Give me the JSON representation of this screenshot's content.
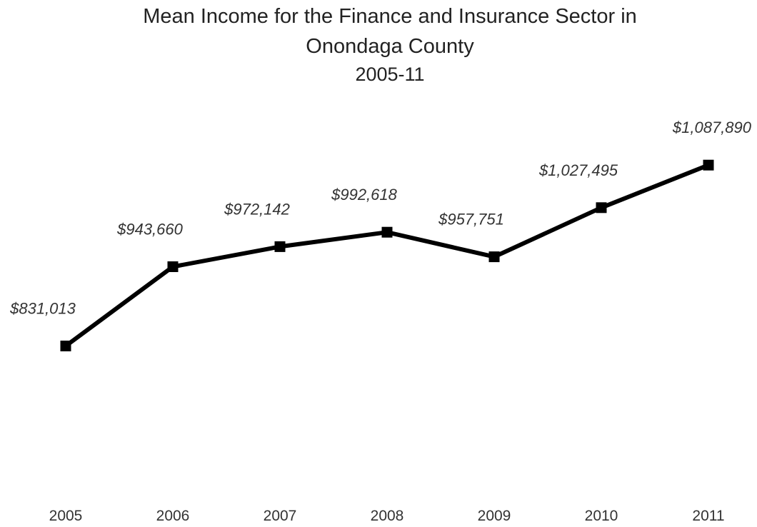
{
  "chart_data": {
    "type": "line",
    "title": "Mean Income for the Finance and Insurance Sector in Onondaga County",
    "title_lines": [
      "Mean Income for the Finance and Insurance Sector in",
      "Onondaga County"
    ],
    "subtitle": "2005-11",
    "xlabel": "",
    "ylabel": "",
    "categories": [
      "2005",
      "2006",
      "2007",
      "2008",
      "2009",
      "2010",
      "2011"
    ],
    "values": [
      831013,
      943660,
      972142,
      992618,
      957751,
      1027495,
      1087890
    ],
    "data_labels": [
      "$831,013",
      "$943,660",
      "$972,142",
      "$992,618",
      "$957,751",
      "$1,027,495",
      "$1,087,890"
    ],
    "ylim": [
      650000,
      1150000
    ],
    "grid": false,
    "legend": "none",
    "line_color": "#000000",
    "marker": "square"
  }
}
